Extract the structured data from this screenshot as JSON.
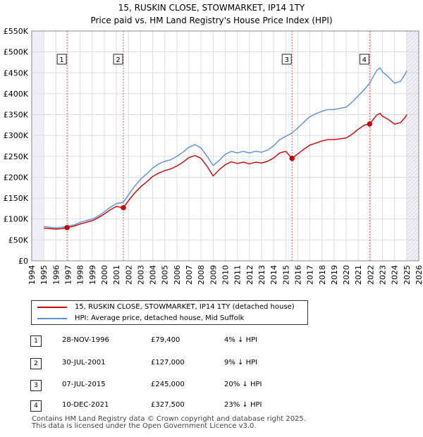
{
  "header": {
    "title_line1": "15, RUSKIN CLOSE, STOWMARKET, IP14 1TY",
    "title_line2": "Price paid vs. HM Land Registry's House Price Index (HPI)"
  },
  "legend": {
    "items": [
      {
        "label": "15, RUSKIN CLOSE, STOWMARKET, IP14 1TY (detached house)",
        "color": "#cc0000"
      },
      {
        "label": "HPI: Average price, detached house, Mid Suffolk",
        "color": "#5b8fd0"
      }
    ]
  },
  "sales": [
    {
      "marker": "1",
      "date": "28-NOV-1996",
      "price": "£79,400",
      "diff": "4% ↓ HPI"
    },
    {
      "marker": "2",
      "date": "30-JUL-2001",
      "price": "£127,000",
      "diff": "9% ↓ HPI"
    },
    {
      "marker": "3",
      "date": "07-JUL-2015",
      "price": "£245,000",
      "diff": "20% ↓ HPI"
    },
    {
      "marker": "4",
      "date": "10-DEC-2021",
      "price": "£327,500",
      "diff": "23% ↓ HPI"
    }
  ],
  "footer": {
    "line1": "Contains HM Land Registry data © Crown copyright and database right 2025.",
    "line2": "This data is licensed under the Open Government Licence v3.0."
  },
  "chart_data": {
    "type": "line",
    "title": "15, RUSKIN CLOSE, STOWMARKET, IP14 1TY — Price paid vs. HM Land Registry's House Price Index (HPI)",
    "xlabel": "",
    "ylabel": "",
    "xlim": [
      1994,
      2026
    ],
    "ylim": [
      0,
      550000
    ],
    "x_ticks": [
      1994,
      1995,
      1996,
      1997,
      1998,
      1999,
      2000,
      2001,
      2002,
      2003,
      2004,
      2005,
      2006,
      2007,
      2008,
      2009,
      2010,
      2011,
      2012,
      2013,
      2014,
      2015,
      2016,
      2017,
      2018,
      2019,
      2020,
      2021,
      2022,
      2023,
      2024,
      2025,
      2026
    ],
    "y_ticks": [
      {
        "value": 0,
        "label": "£0"
      },
      {
        "value": 50000,
        "label": "£50K"
      },
      {
        "value": 100000,
        "label": "£100K"
      },
      {
        "value": 150000,
        "label": "£150K"
      },
      {
        "value": 200000,
        "label": "£200K"
      },
      {
        "value": 250000,
        "label": "£250K"
      },
      {
        "value": 300000,
        "label": "£300K"
      },
      {
        "value": 350000,
        "label": "£350K"
      },
      {
        "value": 400000,
        "label": "£400K"
      },
      {
        "value": 450000,
        "label": "£450K"
      },
      {
        "value": 500000,
        "label": "£500K"
      },
      {
        "value": 550000,
        "label": "£550K"
      }
    ],
    "shaded_spans": [
      [
        1994,
        1995
      ],
      [
        2025,
        2026
      ]
    ],
    "series": [
      {
        "name": "HPI: Average price, detached house, Mid Suffolk",
        "color": "#5b8fd0",
        "points": [
          [
            1995.0,
            82000
          ],
          [
            1995.5,
            80000
          ],
          [
            1996.0,
            79000
          ],
          [
            1996.5,
            80000
          ],
          [
            1996.92,
            82500
          ],
          [
            1997.5,
            86000
          ],
          [
            1998.0,
            92000
          ],
          [
            1998.5,
            96000
          ],
          [
            1999.0,
            100000
          ],
          [
            1999.5,
            107000
          ],
          [
            2000.0,
            117000
          ],
          [
            2000.5,
            128000
          ],
          [
            2001.0,
            137000
          ],
          [
            2001.58,
            140000
          ],
          [
            2002.0,
            158000
          ],
          [
            2002.5,
            178000
          ],
          [
            2003.0,
            195000
          ],
          [
            2003.5,
            208000
          ],
          [
            2004.0,
            222000
          ],
          [
            2004.5,
            232000
          ],
          [
            2005.0,
            238000
          ],
          [
            2005.5,
            242000
          ],
          [
            2006.0,
            250000
          ],
          [
            2006.5,
            260000
          ],
          [
            2007.0,
            272000
          ],
          [
            2007.5,
            278000
          ],
          [
            2008.0,
            270000
          ],
          [
            2008.5,
            250000
          ],
          [
            2009.0,
            228000
          ],
          [
            2009.5,
            240000
          ],
          [
            2010.0,
            255000
          ],
          [
            2010.5,
            262000
          ],
          [
            2011.0,
            258000
          ],
          [
            2011.5,
            262000
          ],
          [
            2012.0,
            258000
          ],
          [
            2012.5,
            262000
          ],
          [
            2013.0,
            260000
          ],
          [
            2013.5,
            265000
          ],
          [
            2014.0,
            275000
          ],
          [
            2014.5,
            290000
          ],
          [
            2015.0,
            298000
          ],
          [
            2015.52,
            306000
          ],
          [
            2016.0,
            318000
          ],
          [
            2016.5,
            332000
          ],
          [
            2017.0,
            345000
          ],
          [
            2017.5,
            352000
          ],
          [
            2018.0,
            358000
          ],
          [
            2018.5,
            362000
          ],
          [
            2019.0,
            362000
          ],
          [
            2019.5,
            365000
          ],
          [
            2020.0,
            368000
          ],
          [
            2020.5,
            380000
          ],
          [
            2021.0,
            395000
          ],
          [
            2021.5,
            410000
          ],
          [
            2021.94,
            425000
          ],
          [
            2022.5,
            455000
          ],
          [
            2022.8,
            462000
          ],
          [
            2023.0,
            452000
          ],
          [
            2023.5,
            440000
          ],
          [
            2024.0,
            425000
          ],
          [
            2024.5,
            430000
          ],
          [
            2024.9,
            448000
          ],
          [
            2025.0,
            455000
          ]
        ]
      },
      {
        "name": "15, RUSKIN CLOSE, STOWMARKET, IP14 1TY (detached house)",
        "color": "#cc0000",
        "points": [
          [
            1995.0,
            78000
          ],
          [
            1995.5,
            77000
          ],
          [
            1996.0,
            76000
          ],
          [
            1996.5,
            77000
          ],
          [
            1996.92,
            79400
          ],
          [
            1997.5,
            83000
          ],
          [
            1998.0,
            88000
          ],
          [
            1998.5,
            92000
          ],
          [
            1999.0,
            96000
          ],
          [
            1999.5,
            103000
          ],
          [
            2000.0,
            112000
          ],
          [
            2000.5,
            122000
          ],
          [
            2001.0,
            130000
          ],
          [
            2001.58,
            127000
          ],
          [
            2002.0,
            144000
          ],
          [
            2002.5,
            162000
          ],
          [
            2003.0,
            177000
          ],
          [
            2003.5,
            189000
          ],
          [
            2004.0,
            202000
          ],
          [
            2004.5,
            210000
          ],
          [
            2005.0,
            216000
          ],
          [
            2005.5,
            220000
          ],
          [
            2006.0,
            227000
          ],
          [
            2006.5,
            236000
          ],
          [
            2007.0,
            247000
          ],
          [
            2007.5,
            252000
          ],
          [
            2008.0,
            245000
          ],
          [
            2008.5,
            226000
          ],
          [
            2009.0,
            203000
          ],
          [
            2009.5,
            218000
          ],
          [
            2010.0,
            230000
          ],
          [
            2010.5,
            237000
          ],
          [
            2011.0,
            233000
          ],
          [
            2011.5,
            236000
          ],
          [
            2012.0,
            232000
          ],
          [
            2012.5,
            236000
          ],
          [
            2013.0,
            234000
          ],
          [
            2013.5,
            238000
          ],
          [
            2014.0,
            246000
          ],
          [
            2014.5,
            258000
          ],
          [
            2015.0,
            262000
          ],
          [
            2015.52,
            245000
          ],
          [
            2016.0,
            256000
          ],
          [
            2016.5,
            267000
          ],
          [
            2017.0,
            277000
          ],
          [
            2017.5,
            282000
          ],
          [
            2018.0,
            287000
          ],
          [
            2018.5,
            290000
          ],
          [
            2019.0,
            290000
          ],
          [
            2019.5,
            292000
          ],
          [
            2020.0,
            294000
          ],
          [
            2020.5,
            303000
          ],
          [
            2021.0,
            315000
          ],
          [
            2021.5,
            325000
          ],
          [
            2021.94,
            327500
          ],
          [
            2022.5,
            348000
          ],
          [
            2022.8,
            353000
          ],
          [
            2023.0,
            346000
          ],
          [
            2023.5,
            338000
          ],
          [
            2024.0,
            327000
          ],
          [
            2024.5,
            331000
          ],
          [
            2024.9,
            344000
          ],
          [
            2025.0,
            350000
          ]
        ]
      }
    ],
    "sale_markers": [
      {
        "label": "1",
        "x": 1996.92,
        "price": 79400
      },
      {
        "label": "2",
        "x": 2001.58,
        "price": 127000
      },
      {
        "label": "3",
        "x": 2015.52,
        "price": 245000
      },
      {
        "label": "4",
        "x": 2021.94,
        "price": 327500
      }
    ]
  }
}
